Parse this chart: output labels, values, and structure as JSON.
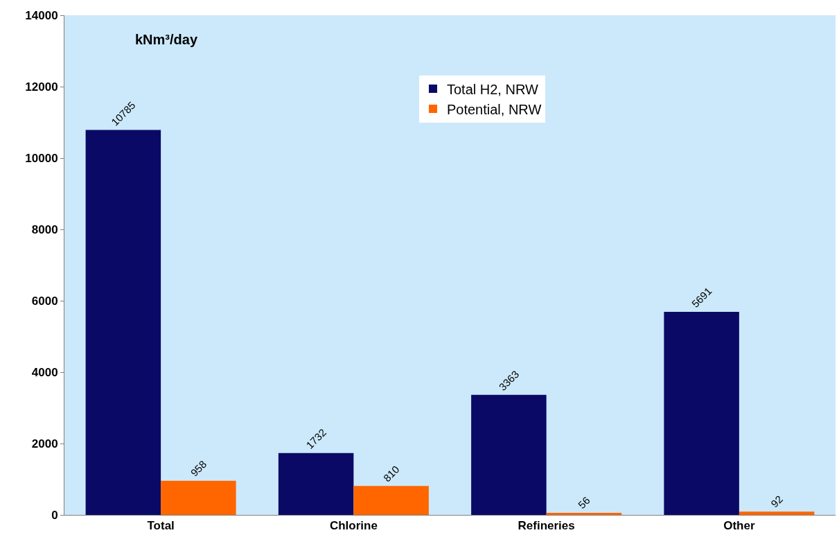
{
  "chart_data": {
    "type": "bar",
    "ylabel": "kNm³/day",
    "categories": [
      "Total",
      "Chlorine",
      "Refineries",
      "Other"
    ],
    "series": [
      {
        "name": "Total H2, NRW",
        "color": "#0a0a66",
        "values": [
          10785,
          1732,
          3363,
          5691
        ]
      },
      {
        "name": "Potential, NRW",
        "color": "#ff6600",
        "values": [
          958,
          810,
          56,
          92
        ]
      }
    ],
    "ylim": [
      0,
      14000
    ],
    "yticks": [
      0,
      2000,
      4000,
      6000,
      8000,
      10000,
      12000,
      14000
    ],
    "data_labels": true,
    "legend": "top",
    "grid": false
  }
}
